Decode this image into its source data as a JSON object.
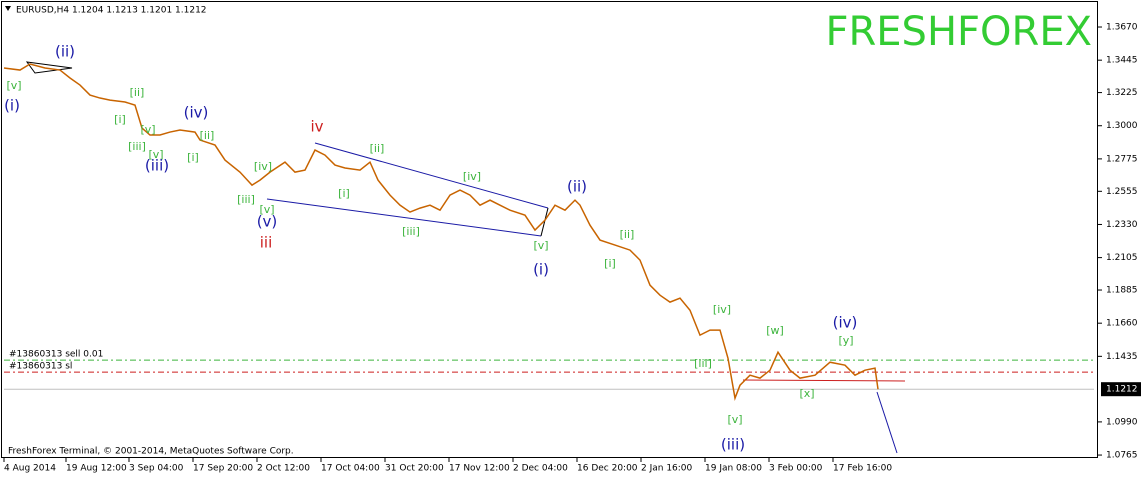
{
  "chart_data": {
    "type": "line",
    "header": "EURUSD,H4  1.1204 1.1213 1.1201 1.1212",
    "logo": "FRESHFOREX",
    "copyright": "FreshForex Terminal, © 2001-2014, MetaQuotes Software Corp.",
    "x": [
      0,
      16,
      26,
      41,
      56,
      66,
      76,
      86,
      96,
      106,
      121,
      131,
      138,
      146,
      156,
      166,
      176,
      191,
      196,
      211,
      221,
      236,
      248,
      256,
      266,
      281,
      291,
      301,
      311,
      321,
      331,
      341,
      356,
      366,
      374,
      386,
      396,
      406,
      416,
      426,
      436,
      446,
      456,
      466,
      476,
      486,
      496,
      506,
      521,
      531,
      541,
      551,
      561,
      571,
      576,
      586,
      596,
      611,
      626,
      636,
      646,
      656,
      666,
      676,
      686,
      696,
      706,
      716,
      724,
      731,
      736,
      746,
      756,
      766,
      774,
      786,
      796,
      811,
      826,
      841,
      851,
      861,
      871,
      874
    ],
    "series": [
      {
        "name": "EURUSD,H4",
        "color": "#c86400",
        "values": [
          1.3392,
          1.3378,
          1.3419,
          1.3392,
          1.3378,
          1.3324,
          1.3276,
          1.3208,
          1.3188,
          1.3174,
          1.3161,
          1.314,
          1.2984,
          1.2937,
          1.2937,
          1.2957,
          1.2971,
          1.2957,
          1.2903,
          1.2869,
          1.2767,
          1.2685,
          1.2597,
          1.2631,
          1.2685,
          1.2753,
          1.2685,
          1.2699,
          1.2835,
          1.2801,
          1.2733,
          1.2713,
          1.2699,
          1.2753,
          1.2631,
          1.2529,
          1.2461,
          1.2414,
          1.2441,
          1.2461,
          1.2427,
          1.2529,
          1.2563,
          1.2529,
          1.2461,
          1.2495,
          1.2461,
          1.2427,
          1.2393,
          1.2292,
          1.2359,
          1.2461,
          1.2427,
          1.2495,
          1.2461,
          1.2325,
          1.2224,
          1.219,
          1.2156,
          1.2088,
          1.1918,
          1.185,
          1.1803,
          1.183,
          1.1748,
          1.1579,
          1.1613,
          1.1613,
          1.1422,
          1.1151,
          1.1239,
          1.1307,
          1.1287,
          1.1341,
          1.1463,
          1.1341,
          1.1287,
          1.1307,
          1.1395,
          1.1375,
          1.1307,
          1.1341,
          1.1355,
          1.1212
        ]
      }
    ],
    "xlim": [
      0,
      1090
    ],
    "xticks": [
      {
        "value": 0,
        "label": "4 Aug 2014"
      },
      {
        "value": 62,
        "label": "19 Aug 12:00"
      },
      {
        "value": 125,
        "label": "3 Sep 04:00"
      },
      {
        "value": 189,
        "label": "17 Sep 20:00"
      },
      {
        "value": 253,
        "label": "2 Oct 12:00"
      },
      {
        "value": 317,
        "label": "17 Oct 04:00"
      },
      {
        "value": 381,
        "label": "31 Oct 20:00"
      },
      {
        "value": 445,
        "label": "17 Nov 12:00"
      },
      {
        "value": 509,
        "label": "2 Dec 04:00"
      },
      {
        "value": 573,
        "label": "16 Dec 20:00"
      },
      {
        "value": 637,
        "label": "2 Jan 16:00"
      },
      {
        "value": 701,
        "label": "19 Jan 08:00"
      },
      {
        "value": 765,
        "label": "3 Feb 00:00"
      },
      {
        "value": 829,
        "label": "17 Feb 16:00"
      }
    ],
    "ylim": [
      1.0745,
      1.3833
    ],
    "yticks": [
      {
        "value": 1.367,
        "label": "1.3670"
      },
      1.3445,
      1.3225,
      {
        "value": 1.3,
        "label": "1.3000"
      },
      1.2775,
      1.2555,
      {
        "value": 1.233,
        "label": "1.2330"
      },
      1.2105,
      1.1885,
      {
        "value": 1.166,
        "label": "1.1660"
      },
      1.1435,
      {
        "value": 1.099,
        "label": "1.0990"
      },
      1.0765
    ],
    "current_price": 1.1212,
    "orders": [
      {
        "label": "#13860313 sell 0.01",
        "price": 1.1409,
        "color": "#3cb43c"
      },
      {
        "label": "#13860313 sl",
        "price": 1.1328,
        "color": "#cc1f1f"
      }
    ],
    "annotations": [
      {
        "text": "(ii)",
        "color": "#1a1aa6"
      },
      {
        "text": "(i)",
        "color": "#1a1aa6"
      },
      {
        "text": "[v]",
        "color": "#3cb43c"
      },
      {
        "text": "[ii]",
        "color": "#3cb43c"
      },
      {
        "text": "[i]",
        "color": "#3cb43c"
      },
      {
        "text": "[v]",
        "color": "#3cb43c"
      },
      {
        "text": "[iii]",
        "color": "#3cb43c"
      },
      {
        "text": "[v]",
        "color": "#3cb43c"
      },
      {
        "text": "(iii)",
        "color": "#1a1aa6"
      },
      {
        "text": "(iv)",
        "color": "#1a1aa6"
      },
      {
        "text": "[ii]",
        "color": "#3cb43c"
      },
      {
        "text": "[i]",
        "color": "#3cb43c"
      },
      {
        "text": "[iv]",
        "color": "#3cb43c"
      },
      {
        "text": "[iii]",
        "color": "#3cb43c"
      },
      {
        "text": "[v]",
        "color": "#3cb43c"
      },
      {
        "text": "(v)",
        "color": "#1a1aa6"
      },
      {
        "text": "iii",
        "color": "#cc1f1f"
      },
      {
        "text": "iv",
        "color": "#cc1f1f"
      },
      {
        "text": "[ii]",
        "color": "#3cb43c"
      },
      {
        "text": "[i]",
        "color": "#3cb43c"
      },
      {
        "text": "[iii]",
        "color": "#3cb43c"
      },
      {
        "text": "[iv]",
        "color": "#3cb43c"
      },
      {
        "text": "[v]",
        "color": "#3cb43c"
      },
      {
        "text": "(i)",
        "color": "#1a1aa6"
      },
      {
        "text": "(ii)",
        "color": "#1a1aa6"
      },
      {
        "text": "[ii]",
        "color": "#3cb43c"
      },
      {
        "text": "[i]",
        "color": "#3cb43c"
      },
      {
        "text": "[iv]",
        "color": "#3cb43c"
      },
      {
        "text": "[iii]",
        "color": "#3cb43c"
      },
      {
        "text": "[v]",
        "color": "#3cb43c"
      },
      {
        "text": "(iii)",
        "color": "#1a1aa6"
      },
      {
        "text": "[w]",
        "color": "#3cb43c"
      },
      {
        "text": "(iv)",
        "color": "#1a1aa6"
      },
      {
        "text": "[y]",
        "color": "#3cb43c"
      },
      {
        "text": "[x]",
        "color": "#3cb43c"
      }
    ]
  }
}
